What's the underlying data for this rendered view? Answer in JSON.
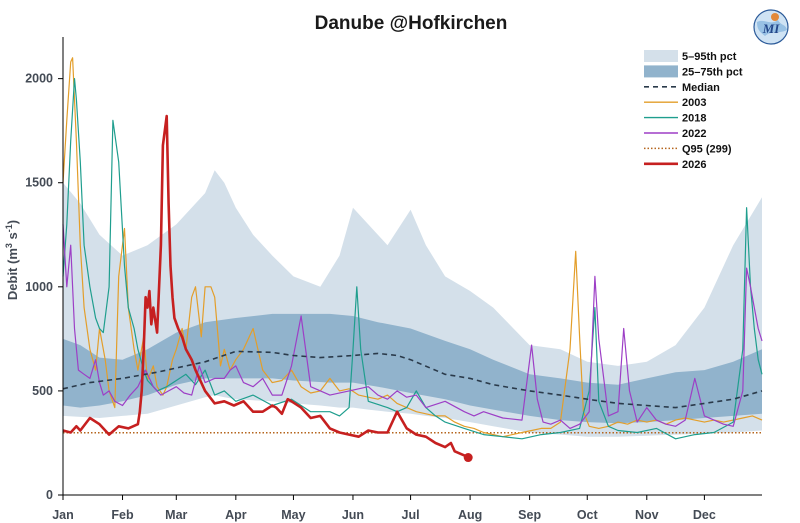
{
  "logo": {
    "text": "MI"
  },
  "chart_data": {
    "type": "line",
    "title": "Danube @Hofkirchen",
    "ylabel": "Debit (m3 s-1)",
    "ylabel_parts": {
      "main": "Debit  (m",
      "exp1": "3",
      "mid": " s",
      "exp2": "-1",
      "end": ")"
    },
    "xlim": [
      1,
      365
    ],
    "ylim": [
      0,
      2200
    ],
    "yticks": [
      0,
      500,
      1000,
      1500,
      2000
    ],
    "xtick_days": [
      1,
      32,
      60,
      91,
      121,
      152,
      182,
      213,
      244,
      274,
      305,
      335
    ],
    "xtick_labels": [
      "Jan",
      "Feb",
      "Mar",
      "Apr",
      "May",
      "Jun",
      "Jul",
      "Aug",
      "Sep",
      "Oct",
      "Nov",
      "Dec"
    ],
    "grid": false,
    "legend_position": "top-right",
    "legend": [
      {
        "label": "5–95th pct",
        "kind": "band",
        "color": "#d4e0ea"
      },
      {
        "label": "25–75th pct",
        "kind": "band",
        "color": "#91b3cc"
      },
      {
        "label": "Median",
        "kind": "dashed",
        "color": "#2a3a4a"
      },
      {
        "label": "2003",
        "kind": "line",
        "color": "#e39e2a"
      },
      {
        "label": "2018",
        "kind": "line",
        "color": "#1f9e8e"
      },
      {
        "label": "2022",
        "kind": "line",
        "color": "#9d3fc6"
      },
      {
        "label": "Q95 (299)",
        "kind": "dotted",
        "color": "#b5651d"
      },
      {
        "label": "2026",
        "kind": "thick",
        "color": "#c62020"
      }
    ],
    "q95": 299,
    "band_5_95": {
      "x": [
        1,
        10,
        20,
        32,
        45,
        60,
        75,
        80,
        85,
        91,
        100,
        110,
        121,
        135,
        145,
        152,
        160,
        170,
        182,
        190,
        200,
        213,
        225,
        244,
        260,
        274,
        290,
        305,
        320,
        335,
        350,
        365
      ],
      "low": [
        380,
        375,
        370,
        380,
        390,
        430,
        470,
        480,
        470,
        460,
        455,
        450,
        440,
        430,
        420,
        420,
        410,
        400,
        390,
        380,
        370,
        350,
        330,
        300,
        290,
        280,
        280,
        285,
        290,
        295,
        300,
        310
      ],
      "high": [
        1500,
        1400,
        1250,
        1150,
        1200,
        1300,
        1450,
        1560,
        1500,
        1380,
        1250,
        1150,
        1050,
        1000,
        1150,
        1380,
        1300,
        1200,
        1370,
        1200,
        1050,
        980,
        900,
        720,
        700,
        640,
        620,
        640,
        720,
        900,
        1200,
        1430
      ]
    },
    "band_25_75": {
      "x": [
        1,
        10,
        20,
        32,
        45,
        60,
        75,
        91,
        110,
        121,
        140,
        152,
        165,
        182,
        200,
        213,
        225,
        244,
        260,
        274,
        290,
        305,
        320,
        335,
        350,
        365
      ],
      "low": [
        430,
        420,
        430,
        450,
        480,
        530,
        560,
        560,
        560,
        550,
        540,
        540,
        520,
        490,
        460,
        430,
        410,
        380,
        360,
        350,
        345,
        350,
        360,
        370,
        380,
        390
      ],
      "high": [
        750,
        720,
        660,
        650,
        700,
        780,
        830,
        850,
        870,
        870,
        870,
        860,
        830,
        800,
        740,
        700,
        650,
        580,
        560,
        540,
        530,
        560,
        590,
        600,
        640,
        700
      ]
    },
    "median": {
      "x": [
        1,
        15,
        32,
        50,
        60,
        75,
        91,
        110,
        121,
        135,
        152,
        165,
        175,
        182,
        200,
        213,
        225,
        244,
        260,
        274,
        290,
        305,
        320,
        335,
        350,
        365
      ],
      "y": [
        510,
        540,
        560,
        590,
        610,
        640,
        690,
        685,
        670,
        660,
        670,
        680,
        670,
        650,
        580,
        560,
        530,
        500,
        480,
        460,
        440,
        430,
        420,
        440,
        460,
        500
      ]
    },
    "series": [
      {
        "name": "2003",
        "color": "#e39e2a",
        "width": 1.2,
        "x": [
          1,
          3,
          5,
          6,
          8,
          10,
          12,
          15,
          18,
          20,
          23,
          25,
          28,
          30,
          33,
          35,
          38,
          40,
          43,
          45,
          48,
          50,
          53,
          55,
          58,
          60,
          63,
          65,
          68,
          70,
          73,
          75,
          78,
          80,
          83,
          85,
          88,
          91,
          95,
          100,
          105,
          110,
          115,
          120,
          125,
          130,
          135,
          140,
          145,
          150,
          155,
          160,
          165,
          170,
          175,
          180,
          185,
          190,
          195,
          200,
          205,
          210,
          215,
          220,
          225,
          230,
          235,
          240,
          245,
          250,
          255,
          260,
          265,
          268,
          270,
          272,
          275,
          280,
          285,
          290,
          295,
          300,
          305,
          310,
          315,
          320,
          325,
          330,
          335,
          340,
          345,
          350,
          355,
          360,
          365
        ],
        "y": [
          1500,
          1800,
          2080,
          2100,
          1700,
          1200,
          900,
          700,
          600,
          800,
          650,
          500,
          420,
          1050,
          1280,
          900,
          700,
          600,
          760,
          550,
          620,
          520,
          480,
          520,
          650,
          700,
          800,
          700,
          950,
          1000,
          760,
          1000,
          1000,
          950,
          620,
          700,
          600,
          650,
          700,
          800,
          600,
          540,
          550,
          600,
          520,
          490,
          500,
          560,
          500,
          510,
          480,
          470,
          460,
          480,
          440,
          420,
          400,
          390,
          380,
          380,
          350,
          330,
          320,
          300,
          290,
          280,
          290,
          300,
          310,
          320,
          320,
          350,
          700,
          1170,
          760,
          400,
          330,
          320,
          330,
          350,
          340,
          360,
          350,
          360,
          340,
          360,
          370,
          360,
          350,
          360,
          350,
          360,
          370,
          380,
          360
        ]
      },
      {
        "name": "2018",
        "color": "#1f9e8e",
        "width": 1.2,
        "x": [
          1,
          3,
          5,
          7,
          8,
          10,
          12,
          15,
          18,
          20,
          22,
          25,
          27,
          30,
          33,
          35,
          38,
          40,
          43,
          45,
          48,
          50,
          55,
          60,
          65,
          70,
          75,
          80,
          85,
          91,
          100,
          110,
          120,
          130,
          140,
          145,
          150,
          152,
          154,
          156,
          160,
          170,
          175,
          180,
          185,
          190,
          195,
          200,
          210,
          220,
          230,
          240,
          250,
          260,
          270,
          275,
          278,
          280,
          285,
          290,
          300,
          310,
          320,
          330,
          340,
          350,
          355,
          357,
          359,
          361,
          363,
          365
        ],
        "y": [
          1050,
          1300,
          1700,
          2000,
          1900,
          1600,
          1200,
          1000,
          850,
          800,
          780,
          1000,
          1800,
          1600,
          1100,
          900,
          800,
          700,
          600,
          550,
          520,
          500,
          520,
          550,
          580,
          530,
          600,
          480,
          500,
          450,
          480,
          430,
          460,
          400,
          400,
          380,
          420,
          700,
          1000,
          700,
          450,
          420,
          400,
          420,
          500,
          420,
          380,
          350,
          320,
          290,
          280,
          270,
          290,
          300,
          320,
          500,
          900,
          450,
          330,
          310,
          300,
          320,
          270,
          290,
          300,
          350,
          700,
          1380,
          1000,
          800,
          650,
          580
        ]
      },
      {
        "name": "2022",
        "color": "#9d3fc6",
        "width": 1.2,
        "x": [
          1,
          3,
          5,
          7,
          9,
          12,
          15,
          18,
          20,
          22,
          25,
          28,
          32,
          36,
          40,
          44,
          48,
          52,
          56,
          60,
          64,
          68,
          72,
          75,
          80,
          85,
          88,
          91,
          95,
          100,
          105,
          110,
          115,
          120,
          125,
          130,
          140,
          150,
          160,
          165,
          170,
          175,
          180,
          185,
          190,
          200,
          210,
          215,
          220,
          230,
          240,
          245,
          248,
          251,
          255,
          260,
          265,
          270,
          275,
          278,
          280,
          285,
          290,
          293,
          296,
          300,
          305,
          310,
          315,
          320,
          325,
          330,
          335,
          340,
          345,
          350,
          355,
          357,
          359,
          361,
          363,
          365
        ],
        "y": [
          1300,
          1000,
          1200,
          800,
          600,
          580,
          560,
          650,
          540,
          480,
          500,
          450,
          430,
          480,
          520,
          600,
          520,
          480,
          500,
          520,
          490,
          480,
          620,
          540,
          560,
          560,
          600,
          620,
          540,
          520,
          560,
          480,
          480,
          620,
          860,
          520,
          480,
          500,
          520,
          480,
          460,
          500,
          470,
          480,
          420,
          450,
          400,
          380,
          400,
          370,
          360,
          720,
          460,
          350,
          340,
          360,
          320,
          340,
          400,
          1050,
          750,
          380,
          400,
          800,
          500,
          350,
          420,
          360,
          340,
          330,
          360,
          560,
          380,
          360,
          340,
          330,
          500,
          1090,
          1000,
          900,
          800,
          740
        ]
      },
      {
        "name": "2026",
        "color": "#c62020",
        "width": 2.6,
        "x": [
          1,
          5,
          8,
          10,
          15,
          20,
          25,
          30,
          35,
          40,
          41,
          42,
          43,
          44,
          45,
          46,
          47,
          48,
          50,
          52,
          53,
          55,
          56,
          57,
          58,
          59,
          61,
          63,
          65,
          68,
          70,
          75,
          80,
          85,
          90,
          95,
          100,
          105,
          110,
          112,
          115,
          118,
          120,
          125,
          130,
          135,
          140,
          145,
          150,
          155,
          160,
          165,
          170,
          175,
          180,
          185,
          190,
          195,
          200,
          203,
          205,
          210,
          212
        ],
        "y": [
          310,
          300,
          330,
          310,
          370,
          340,
          290,
          330,
          320,
          340,
          400,
          500,
          700,
          950,
          900,
          980,
          820,
          900,
          780,
          1200,
          1680,
          1820,
          1400,
          1100,
          950,
          850,
          800,
          760,
          700,
          650,
          600,
          500,
          440,
          450,
          430,
          450,
          400,
          400,
          430,
          420,
          390,
          460,
          450,
          420,
          370,
          380,
          320,
          300,
          290,
          280,
          310,
          300,
          300,
          400,
          320,
          290,
          280,
          250,
          230,
          250,
          210,
          190,
          180
        ]
      }
    ],
    "current_point": {
      "x": 212,
      "y": 180
    }
  }
}
